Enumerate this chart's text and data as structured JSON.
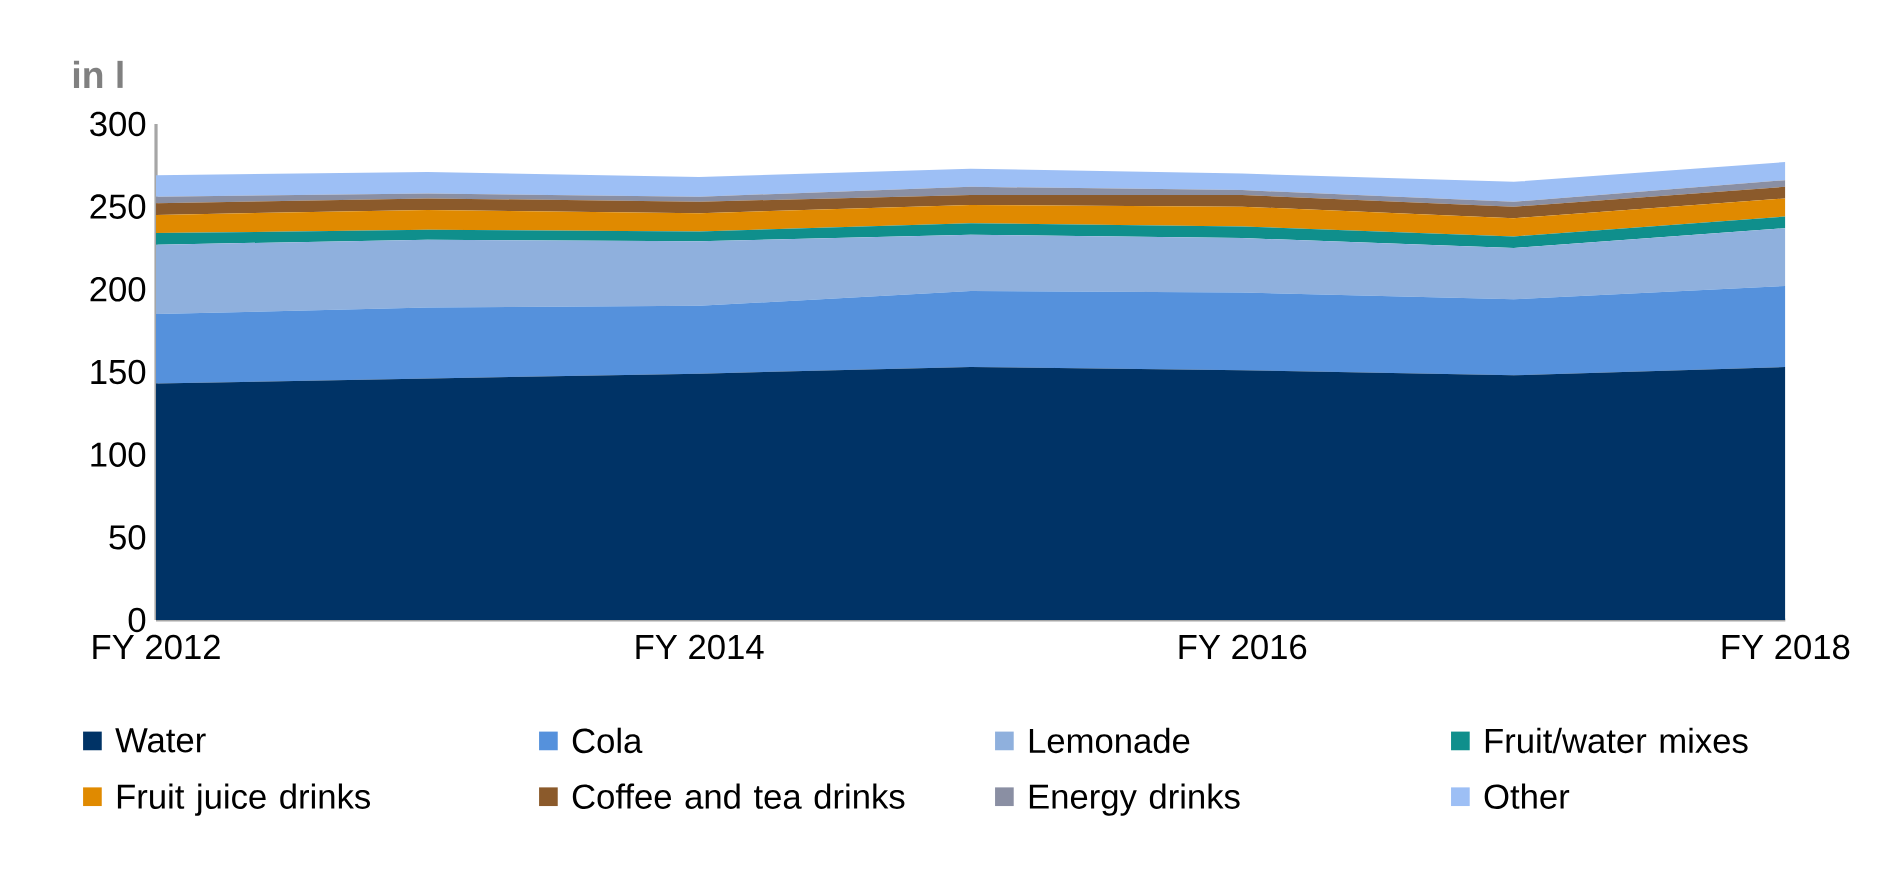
{
  "chart_data": {
    "type": "area",
    "stacked": true,
    "ylabel": "in l",
    "categories": [
      "FY 2012",
      null,
      "FY 2014",
      null,
      "FY 2016",
      null,
      "FY 2018"
    ],
    "ylim": [
      0,
      300
    ],
    "yticks": [
      0,
      50,
      100,
      150,
      200,
      250,
      300
    ],
    "legend": "bottom",
    "series": [
      {
        "name": "Water",
        "color": "#003366",
        "values": [
          143,
          146,
          149,
          153,
          151,
          148,
          153
        ]
      },
      {
        "name": "Cola",
        "color": "#5591dc",
        "values": [
          42,
          43,
          41,
          46,
          47,
          46,
          49
        ]
      },
      {
        "name": "Lemonade",
        "color": "#8fb0dd",
        "values": [
          42,
          41,
          39,
          34,
          33,
          31,
          35
        ]
      },
      {
        "name": "Fruit/water mixes",
        "color": "#0f8f8c",
        "values": [
          7,
          6,
          6,
          7,
          7,
          7,
          7
        ]
      },
      {
        "name": "Fruit juice drinks",
        "color": "#e08a00",
        "values": [
          11,
          12,
          11,
          11,
          12,
          11,
          11
        ]
      },
      {
        "name": "Coffee and tea drinks",
        "color": "#8b5a2b",
        "values": [
          7,
          7,
          7,
          6,
          7,
          7,
          7
        ]
      },
      {
        "name": "Energy drinks",
        "color": "#8a8fa3",
        "values": [
          4,
          3,
          3,
          5,
          3,
          3,
          4
        ]
      },
      {
        "name": "Other",
        "color": "#9dbff5",
        "values": [
          13,
          13,
          12,
          11,
          10,
          12,
          11
        ]
      }
    ]
  }
}
